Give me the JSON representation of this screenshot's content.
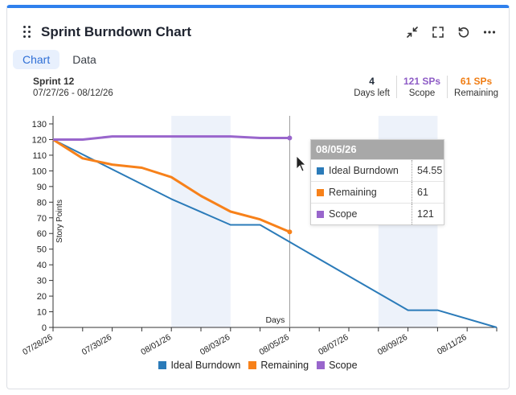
{
  "header": {
    "title": "Sprint Burndown Chart",
    "actions": [
      "minimize-icon",
      "fullscreen-icon",
      "refresh-icon",
      "more-icon"
    ]
  },
  "tabs": [
    {
      "label": "Chart",
      "active": true
    },
    {
      "label": "Data",
      "active": false
    }
  ],
  "sprint": {
    "name": "Sprint 12",
    "dates": "07/27/26 - 08/12/26"
  },
  "stats": [
    {
      "value": "4",
      "label": "Days left",
      "color": "#333333"
    },
    {
      "value": "121 SPs",
      "label": "Scope",
      "color": "#8e5cc6"
    },
    {
      "value": "61 SPs",
      "label": "Remaining",
      "color": "#f07d14"
    }
  ],
  "colors": {
    "ideal": "#2b7bb9",
    "remaining": "#f7811a",
    "scope": "#9966cc",
    "weekend": "#edf2fa"
  },
  "tooltip": {
    "date": "08/05/26",
    "rows": [
      {
        "label": "Ideal Burndown",
        "value": "54.55",
        "color": "#2b7bb9"
      },
      {
        "label": "Remaining",
        "value": "61",
        "color": "#f7811a"
      },
      {
        "label": "Scope",
        "value": "121",
        "color": "#9966cc"
      }
    ]
  },
  "chart_data": {
    "type": "line",
    "ylabel": "Story Points",
    "xlabel": "Days",
    "ylim": [
      0,
      130
    ],
    "yticks": [
      0,
      10,
      20,
      30,
      40,
      50,
      60,
      70,
      80,
      90,
      100,
      110,
      120,
      130
    ],
    "x_range": [
      "07/28/26",
      "08/12/26"
    ],
    "x_ticks": [
      "07/28/26",
      "07/30/26",
      "08/01/26",
      "08/03/26",
      "08/05/26",
      "08/07/26",
      "08/09/26",
      "08/11/26"
    ],
    "weekends": [
      [
        "08/01/26",
        "08/03/26"
      ],
      [
        "08/08/26",
        "08/10/26"
      ]
    ],
    "cursor_date": "08/05/26",
    "series": [
      {
        "name": "Ideal Burndown",
        "color": "#2b7bb9",
        "points": [
          [
            "07/28/26",
            120
          ],
          [
            "08/01/26",
            82
          ],
          [
            "08/03/26",
            65.5
          ],
          [
            "08/04/26",
            65.5
          ],
          [
            "08/05/26",
            54.55
          ],
          [
            "08/09/26",
            11
          ],
          [
            "08/10/26",
            11
          ],
          [
            "08/12/26",
            0
          ]
        ]
      },
      {
        "name": "Remaining",
        "color": "#f7811a",
        "points": [
          [
            "07/28/26",
            120
          ],
          [
            "07/29/26",
            108
          ],
          [
            "07/30/26",
            104
          ],
          [
            "07/31/26",
            102
          ],
          [
            "08/01/26",
            96
          ],
          [
            "08/02/26",
            84
          ],
          [
            "08/03/26",
            74
          ],
          [
            "08/04/26",
            69
          ],
          [
            "08/05/26",
            61
          ]
        ]
      },
      {
        "name": "Scope",
        "color": "#9966cc",
        "points": [
          [
            "07/28/26",
            120
          ],
          [
            "07/29/26",
            120
          ],
          [
            "07/30/26",
            122
          ],
          [
            "07/31/26",
            122
          ],
          [
            "08/01/26",
            122
          ],
          [
            "08/02/26",
            122
          ],
          [
            "08/03/26",
            122
          ],
          [
            "08/04/26",
            121
          ],
          [
            "08/05/26",
            121
          ]
        ]
      }
    ]
  }
}
